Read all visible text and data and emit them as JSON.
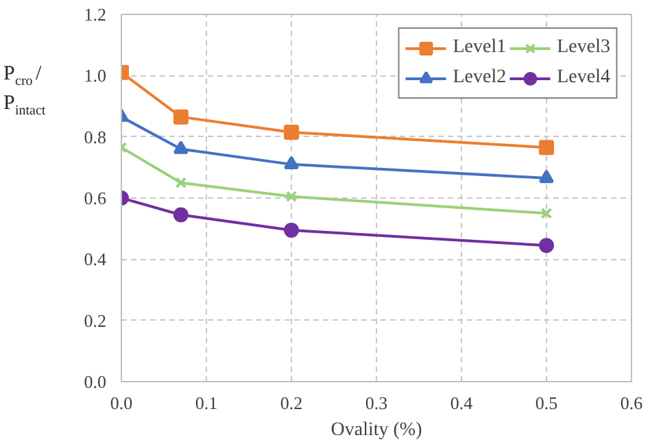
{
  "chart_data": {
    "type": "line",
    "xlabel": "Ovality (%)",
    "ylabel": "P$_{cro}$/P$_{intact}$",
    "x": [
      0,
      0.07,
      0.2,
      0.5
    ],
    "series": [
      {
        "name": "Level1",
        "color": "#ed7d31",
        "marker": "square",
        "values": [
          1.01,
          0.865,
          0.815,
          0.765
        ]
      },
      {
        "name": "Level2",
        "color": "#4472c4",
        "marker": "triangle",
        "values": [
          0.865,
          0.76,
          0.71,
          0.665
        ]
      },
      {
        "name": "Level3",
        "color": "#9bd17a",
        "marker": "cross",
        "values": [
          0.765,
          0.65,
          0.605,
          0.55
        ]
      },
      {
        "name": "Level4",
        "color": "#7030a0",
        "marker": "circle",
        "values": [
          0.6,
          0.545,
          0.495,
          0.445
        ]
      }
    ],
    "xlim": [
      0,
      0.6
    ],
    "xticks": [
      {
        "value": 0,
        "label": "0.0"
      },
      0.1,
      0.2,
      0.3,
      0.4,
      0.5,
      0.6
    ],
    "ylim": [
      0,
      1.2
    ],
    "yticks": [
      {
        "value": 0,
        "label": "0.0"
      },
      {
        "value": 0.2,
        "label": "0.2"
      },
      {
        "value": 0.4,
        "label": "0.4"
      },
      {
        "value": 0.6,
        "label": "0.6"
      },
      {
        "value": 0.8,
        "label": "0.8"
      },
      {
        "value": 1.0,
        "label": "1.0"
      },
      {
        "value": 1.2,
        "label": "1.2"
      }
    ],
    "grid": true,
    "legend": "top right",
    "line_style": "solid"
  }
}
